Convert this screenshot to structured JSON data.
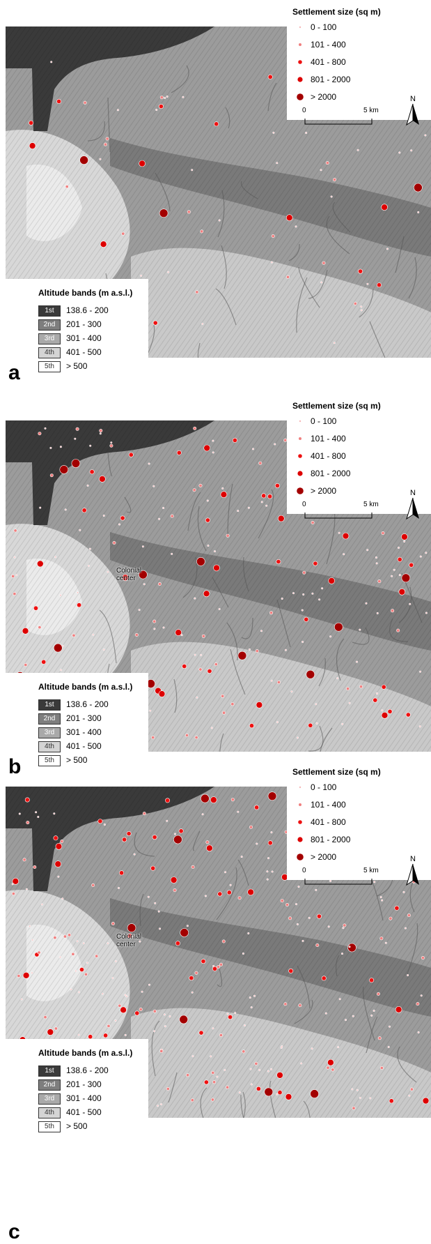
{
  "panels": [
    {
      "letter": "a",
      "colonial_label": null
    },
    {
      "letter": "b",
      "colonial_label": [
        "Colonial",
        "center"
      ]
    },
    {
      "letter": "c",
      "colonial_label": [
        "Colonial",
        "center"
      ]
    }
  ],
  "size_legend": {
    "title": "Settlement size (sq m)",
    "classes": [
      {
        "label": "0 - 100",
        "color": "#f6b7b7"
      },
      {
        "label": "101 - 400",
        "color": "#f08080"
      },
      {
        "label": "401 - 800",
        "color": "#ee1111"
      },
      {
        "label": "801 - 2000",
        "color": "#dd0000"
      },
      {
        "label": "> 2000",
        "color": "#a30000"
      }
    ]
  },
  "scale": {
    "start_label": "0",
    "end_label": "5 km"
  },
  "north_label": "N",
  "altitude_legend": {
    "title": "Altitude bands (m a.s.l.)",
    "bands": [
      {
        "band": "1st",
        "range": "138.6 - 200",
        "color": "#3a3a3a",
        "text_color": "#ffffff"
      },
      {
        "band": "2nd",
        "range": "201 - 300",
        "color": "#7e7e7e",
        "text_color": "#ffffff"
      },
      {
        "band": "3rd",
        "range": "301 - 400",
        "color": "#a9a9a9",
        "text_color": "#ffffff"
      },
      {
        "band": "4th",
        "range": "401 - 500",
        "color": "#d4d4d4",
        "text_color": "#333333"
      },
      {
        "band": "5th",
        "range": "> 500",
        "color": "#ffffff",
        "text_color": "#333333"
      }
    ]
  }
}
